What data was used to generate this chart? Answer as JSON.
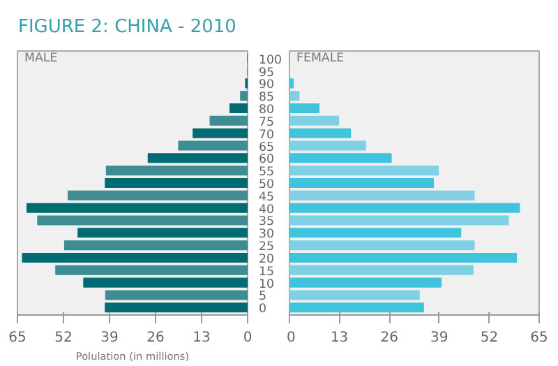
{
  "chart_data": [
    {
      "type": "bar",
      "orientation": "horizontal",
      "title": "FIGURE 2: CHINA - 2010",
      "subtitle": "MALE",
      "xlabel": "Polulation (in millions)",
      "categories": [
        "100",
        "95",
        "90",
        "85",
        "80",
        "75",
        "70",
        "65",
        "60",
        "55",
        "50",
        "45",
        "40",
        "35",
        "30",
        "25",
        "20",
        "15",
        "10",
        "5",
        "0"
      ],
      "values": [
        0,
        0,
        0.6,
        2,
        5,
        10.6,
        15.4,
        19.5,
        28.1,
        39.9,
        40.2,
        50.7,
        62.3,
        59.3,
        47.9,
        51.7,
        63.6,
        54.2,
        46.3,
        40.1,
        40.2
      ],
      "colors": [
        "#006b70",
        "#3d8d92",
        "#006b70",
        "#3d8d92",
        "#006b70",
        "#3d8d92",
        "#006b70",
        "#3d8d92",
        "#006b70",
        "#3d8d92",
        "#006b70",
        "#3d8d92",
        "#006b70",
        "#3d8d92",
        "#006b70",
        "#3d8d92",
        "#006b70",
        "#3d8d92",
        "#006b70",
        "#3d8d92",
        "#006b70"
      ],
      "xlim": [
        65,
        0
      ],
      "xticks": [
        65,
        52,
        39,
        26,
        13,
        0
      ],
      "grid": false
    },
    {
      "type": "bar",
      "orientation": "horizontal",
      "subtitle": "FEMALE",
      "categories": [
        "100",
        "95",
        "90",
        "85",
        "80",
        "75",
        "70",
        "65",
        "60",
        "55",
        "50",
        "45",
        "40",
        "35",
        "30",
        "25",
        "20",
        "15",
        "10",
        "5",
        "0"
      ],
      "values": [
        0,
        0,
        1,
        2.5,
        7.7,
        12.8,
        15.9,
        19.8,
        26.5,
        38.8,
        37.5,
        48.1,
        59.9,
        57.0,
        44.6,
        48.1,
        59.1,
        47.8,
        39.5,
        33.8,
        34.9
      ],
      "colors": [
        "#40c4de",
        "#80d0e3",
        "#40c4de",
        "#80d0e3",
        "#40c4de",
        "#80d0e3",
        "#40c4de",
        "#80d0e3",
        "#40c4de",
        "#80d0e3",
        "#40c4de",
        "#80d0e3",
        "#40c4de",
        "#80d0e3",
        "#40c4de",
        "#80d0e3",
        "#40c4de",
        "#80d0e3",
        "#40c4de",
        "#80d0e3",
        "#40c4de"
      ],
      "xlim": [
        0,
        65
      ],
      "xticks": [
        0,
        13,
        26,
        39,
        52,
        65
      ],
      "grid": false,
      "tick_labels": "x"
    }
  ]
}
